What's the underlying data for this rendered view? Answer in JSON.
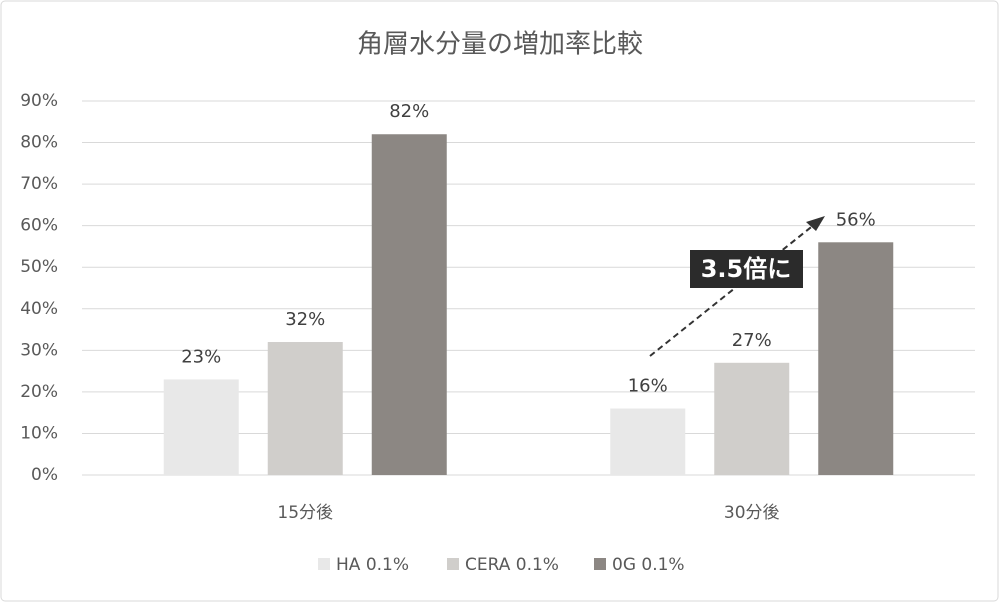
{
  "chart_data": {
    "type": "bar",
    "title": "角層水分量の増加率比較",
    "categories": [
      "15分後",
      "30分後"
    ],
    "series": [
      {
        "name": "HA 0.1%",
        "color": "#e8e8e8",
        "values": [
          23,
          16
        ],
        "value_labels": [
          "23%",
          "16%"
        ]
      },
      {
        "name": "CERA 0.1%",
        "color": "#d0cecb",
        "values": [
          32,
          27
        ],
        "value_labels": [
          "32%",
          "27%"
        ]
      },
      {
        "name": "0G 0.1%",
        "color": "#8c8783",
        "values": [
          82,
          56
        ],
        "value_labels": [
          "82%",
          "56%"
        ]
      }
    ],
    "ylim": [
      0,
      90
    ],
    "yticks": [
      {
        "value": 0,
        "label": "0%"
      },
      {
        "value": 10,
        "label": "10%"
      },
      {
        "value": 20,
        "label": "20%"
      },
      {
        "value": 30,
        "label": "30%"
      },
      {
        "value": 40,
        "label": "40%"
      },
      {
        "value": 50,
        "label": "50%"
      },
      {
        "value": 60,
        "label": "60%"
      },
      {
        "value": 70,
        "label": "70%"
      },
      {
        "value": 80,
        "label": "80%"
      },
      {
        "value": 90,
        "label": "90%"
      }
    ],
    "grid": true,
    "legend": "bottom",
    "annotation": "3.5倍に"
  }
}
